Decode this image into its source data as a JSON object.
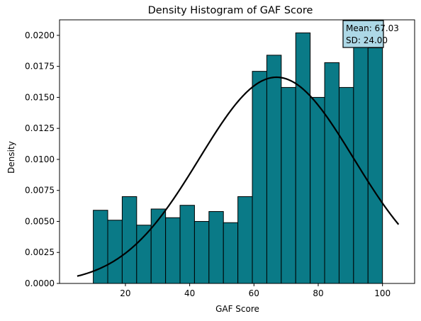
{
  "chart_data": {
    "type": "bar",
    "title": "Density Histogram of GAF Score",
    "xlabel": "GAF Score",
    "ylabel": "Density",
    "xlim": [
      -0.5,
      110
    ],
    "ylim": [
      0,
      0.02125
    ],
    "x_ticks": [
      20,
      40,
      60,
      80,
      100
    ],
    "x_tick_labels": [
      "20",
      "40",
      "60",
      "80",
      "100"
    ],
    "y_ticks": [
      0,
      0.0025,
      0.005,
      0.0075,
      0.01,
      0.0125,
      0.015,
      0.0175,
      0.02
    ],
    "y_tick_labels": [
      "0.0000",
      "0.0025",
      "0.0050",
      "0.0075",
      "0.0100",
      "0.0125",
      "0.0150",
      "0.0175",
      "0.0200"
    ],
    "bin_edges": [
      10,
      14.5,
      19,
      23.5,
      28,
      32.5,
      37,
      41.5,
      46,
      50.5,
      55,
      59.5,
      64,
      68.5,
      73,
      77.5,
      82,
      86.5,
      91,
      95.5,
      100
    ],
    "densities": [
      0.0059,
      0.0051,
      0.007,
      0.0047,
      0.006,
      0.0053,
      0.0063,
      0.005,
      0.0058,
      0.0049,
      0.007,
      0.0171,
      0.0184,
      0.0158,
      0.0202,
      0.015,
      0.0178,
      0.0158,
      0.0193,
      0.019
    ],
    "bar_color": "#0a7a87",
    "edge_color": "#000000",
    "normal_curve": {
      "mean": 67.03,
      "sd": 24.0,
      "x_range": [
        5,
        105
      ],
      "color": "#000000"
    },
    "grid": false,
    "annotation": {
      "lines": [
        "Mean: 67.03",
        "SD: 24.00"
      ],
      "position": "top-right",
      "background": "#add8e6"
    }
  }
}
